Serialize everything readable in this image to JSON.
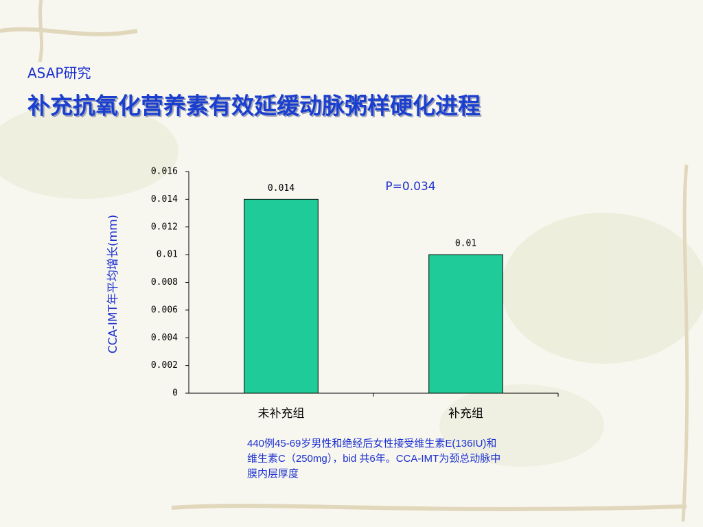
{
  "chart_data": {
    "type": "bar",
    "subtitle": "ASAP研究",
    "title": "补充抗氧化营养素有效延缓动脉粥样硬化进程",
    "ylabel": "CCA-IMT年平均增长(mm)",
    "categories": [
      "未补充组",
      "补充组"
    ],
    "values": [
      0.014,
      0.01
    ],
    "color": "#1fcc99",
    "ylim": [
      0,
      0.016
    ],
    "yticks": [
      0,
      0.002,
      0.004,
      0.006,
      0.008,
      0.01,
      0.012,
      0.014,
      0.016
    ],
    "annotations": [
      "P=0.034"
    ],
    "note": "440例45-69岁男性和绝经后女性接受维生素E(136IU)和维生素C（250mg），bid 共6年。CCA-IMT为颈总动脉中膜内层厚度"
  }
}
